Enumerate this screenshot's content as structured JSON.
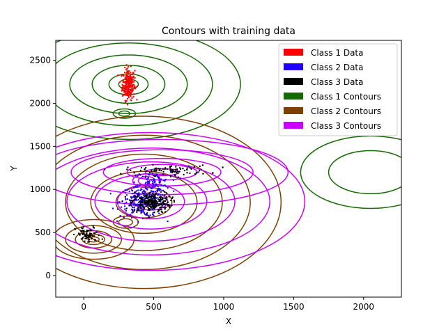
{
  "chart_data": {
    "type": "scatter",
    "title": "Contours with training data",
    "xlabel": "X",
    "ylabel": "Y",
    "xlim": [
      -200,
      2270
    ],
    "ylim": [
      -250,
      2730
    ],
    "xticks": [
      0,
      500,
      1000,
      1500,
      2000
    ],
    "yticks": [
      0,
      500,
      1000,
      1500,
      2000,
      2500
    ],
    "grid": false,
    "legend_position": "top-right",
    "legend": [
      {
        "label": "Class 1 Data",
        "color": "#ff0000"
      },
      {
        "label": "Class 2 Data",
        "color": "#2200ff"
      },
      {
        "label": "Class 3 Data",
        "color": "#000000"
      },
      {
        "label": "Class 1 Contours",
        "color": "#146a00"
      },
      {
        "label": "Class 2 Contours",
        "color": "#7f3f00"
      },
      {
        "label": "Class 3 Contours",
        "color": "#cc00ff"
      }
    ],
    "clusters": [
      {
        "series": "Class 1 Data",
        "color": "#ff0000",
        "cx": 320,
        "cy": 2220,
        "sx": 22,
        "sy": 90,
        "n": 260
      },
      {
        "series": "Class 2 Data",
        "color": "#2200ff",
        "cx": 420,
        "cy": 860,
        "sx": 80,
        "sy": 90,
        "n": 240
      },
      {
        "series": "Class 2 Data",
        "color": "#2200ff",
        "cx": 500,
        "cy": 1080,
        "sx": 60,
        "sy": 60,
        "n": 80
      },
      {
        "series": "Class 3 Data",
        "color": "#000000",
        "cx": 480,
        "cy": 850,
        "sx": 70,
        "sy": 60,
        "n": 260
      },
      {
        "series": "Class 3 Data",
        "color": "#000000",
        "cx": 30,
        "cy": 470,
        "sx": 45,
        "sy": 50,
        "n": 70
      },
      {
        "series": "Class 3 Data",
        "color": "#000000",
        "cx": 600,
        "cy": 1220,
        "sx": 150,
        "sy": 30,
        "n": 90
      }
    ],
    "contour_groups": [
      {
        "series": "Class 1 Contours",
        "color": "#146a00",
        "cx": 320,
        "cy": 2220,
        "rx": [
          70,
          140,
          260,
          420,
          600,
          800
        ],
        "ry": [
          60,
          120,
          220,
          340,
          480,
          640
        ]
      },
      {
        "series": "Class 1 Contours",
        "color": "#146a00",
        "cx": 290,
        "cy": 1880,
        "rx": [
          40,
          80
        ],
        "ry": [
          30,
          55
        ]
      },
      {
        "series": "Class 1 Contours",
        "color": "#146a00",
        "cx": 2050,
        "cy": 1200,
        "rx": [
          300,
          500
        ],
        "ry": [
          250,
          420
        ]
      },
      {
        "series": "Class 2 Contours",
        "color": "#7f3f00",
        "cx": 70,
        "cy": 420,
        "rx": [
          40,
          80,
          130,
          200,
          290
        ],
        "ry": [
          30,
          60,
          100,
          160,
          230
        ]
      },
      {
        "series": "Class 2 Contours",
        "color": "#7f3f00",
        "cx": 430,
        "cy": 850,
        "rx": [
          200,
          380,
          560,
          760,
          980
        ],
        "ry": [
          180,
          360,
          560,
          780,
          1000
        ]
      },
      {
        "series": "Class 2 Contours",
        "color": "#7f3f00",
        "cx": 300,
        "cy": 620,
        "rx": [
          50,
          90
        ],
        "ry": [
          40,
          70
        ]
      },
      {
        "series": "Class 3 Contours",
        "color": "#cc00ff",
        "cx": 560,
        "cy": 1200,
        "rx": [
          120,
          250,
          420,
          650,
          900
        ],
        "ry": [
          40,
          90,
          160,
          260,
          380
        ]
      },
      {
        "series": "Class 3 Contours",
        "color": "#cc00ff",
        "cx": 480,
        "cy": 860,
        "rx": [
          120,
          240,
          400,
          600,
          850,
          1100
        ],
        "ry": [
          100,
          200,
          320,
          460,
          620,
          800
        ]
      },
      {
        "series": "Class 3 Contours",
        "color": "#cc00ff",
        "cx": 450,
        "cy": 1100,
        "rx": [
          60,
          100
        ],
        "ry": [
          50,
          80
        ]
      }
    ]
  }
}
